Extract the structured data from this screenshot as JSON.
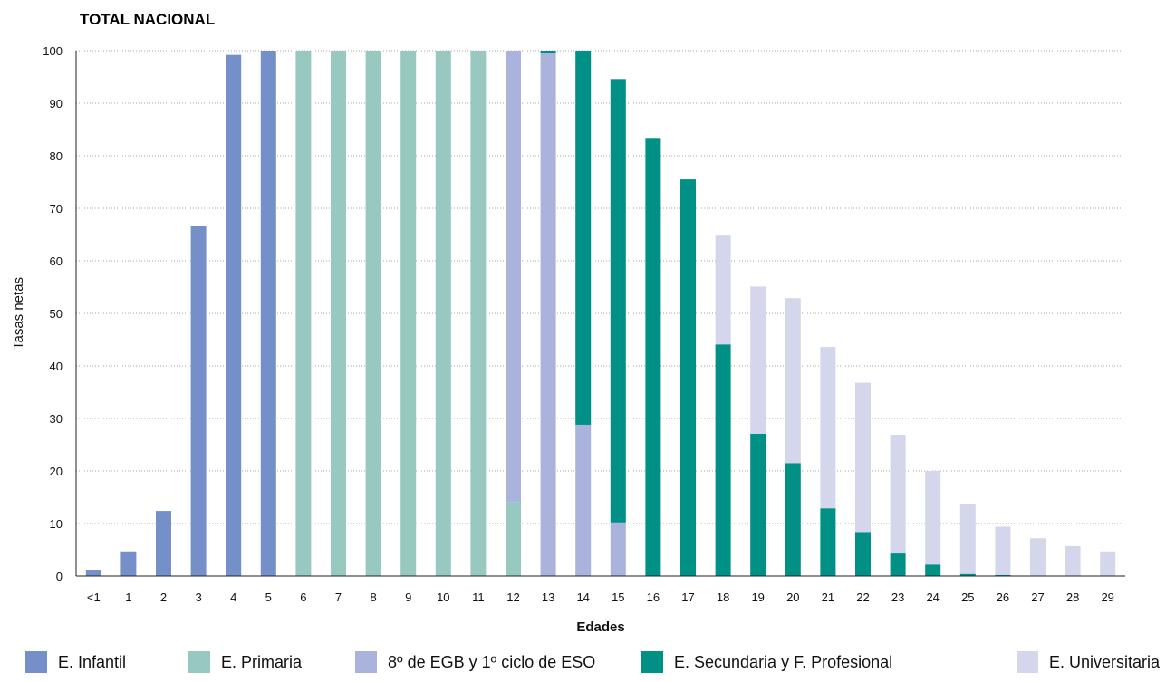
{
  "chart_data": {
    "type": "bar",
    "stacked": true,
    "title": "TOTAL NACIONAL",
    "xlabel": "Edades",
    "ylabel": "Tasas netas",
    "ylim": [
      0,
      100
    ],
    "yticks": [
      0,
      10,
      20,
      30,
      40,
      50,
      60,
      70,
      80,
      90,
      100
    ],
    "grid": true,
    "legend_position": "bottom",
    "categories": [
      "<1",
      "1",
      "2",
      "3",
      "4",
      "5",
      "6",
      "7",
      "8",
      "9",
      "10",
      "11",
      "12",
      "13",
      "14",
      "15",
      "16",
      "17",
      "18",
      "19",
      "20",
      "21",
      "22",
      "23",
      "24",
      "25",
      "26",
      "27",
      "28",
      "29"
    ],
    "series": [
      {
        "name": "E. Infantil",
        "color": "#7590c8",
        "values": [
          1.2,
          4.7,
          12.4,
          66.7,
          99.2,
          100,
          0,
          0,
          0,
          0,
          0,
          0,
          0,
          0,
          0,
          0,
          0,
          0,
          0,
          0,
          0,
          0,
          0,
          0,
          0,
          0,
          0,
          0,
          0,
          0
        ]
      },
      {
        "name": "E. Primaria",
        "color": "#98c9c1",
        "values": [
          0,
          0,
          0,
          0,
          0,
          0,
          100,
          100,
          100,
          100,
          100,
          100,
          14.0,
          0,
          0,
          0,
          0,
          0,
          0,
          0,
          0,
          0,
          0,
          0,
          0,
          0,
          0,
          0,
          0,
          0
        ]
      },
      {
        "name": "8º de EGB y 1º ciclo de ESO",
        "color": "#a9b3dc",
        "values": [
          0,
          0,
          0,
          0,
          0,
          0,
          0,
          0,
          0,
          0,
          0,
          0,
          86.0,
          99.6,
          28.8,
          10.2,
          0,
          0,
          0,
          0,
          0,
          0,
          0,
          0,
          0,
          0,
          0,
          0,
          0,
          0
        ]
      },
      {
        "name": "E. Secundaria y F. Profesional",
        "color": "#009086",
        "values": [
          0,
          0,
          0,
          0,
          0,
          0,
          0,
          0,
          0,
          0,
          0,
          0,
          0,
          0.4,
          71.2,
          84.4,
          83.4,
          75.5,
          44.1,
          27.1,
          21.5,
          12.9,
          8.4,
          4.3,
          2.2,
          0.4,
          0.2,
          0.1,
          0.1,
          0.1
        ]
      },
      {
        "name": "E. Universitaria",
        "color": "#d4d7ec",
        "values": [
          0,
          0,
          0,
          0,
          0,
          0,
          0,
          0,
          0,
          0,
          0,
          0,
          0,
          0,
          0,
          0,
          0,
          0,
          20.7,
          28.0,
          31.4,
          30.7,
          28.4,
          22.6,
          17.8,
          13.3,
          9.2,
          7.1,
          5.6,
          4.6
        ]
      }
    ]
  }
}
